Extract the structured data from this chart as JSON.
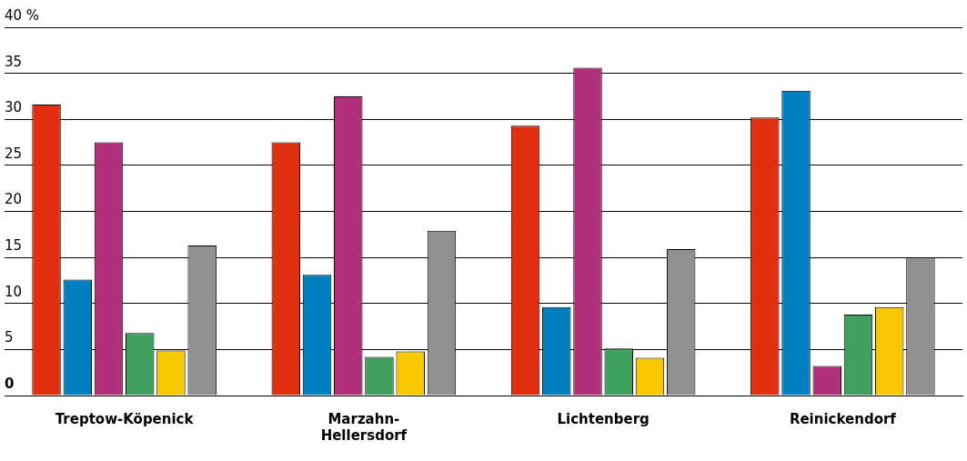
{
  "chart_data": {
    "type": "bar",
    "categories": [
      "Treptow-Köpenick",
      "Marzahn-\nHellersdorf",
      "Lichtenberg",
      "Reinickendorf"
    ],
    "ylim": [
      0,
      40
    ],
    "yticks": [
      0,
      5,
      10,
      15,
      20,
      25,
      30,
      35,
      {
        "value": 40,
        "label": "40 %"
      }
    ],
    "grid": "y",
    "series": [
      {
        "color": "#e03010",
        "values": [
          31.6,
          27.5,
          29.3,
          30.2
        ]
      },
      {
        "color": "#0080c0",
        "values": [
          12.6,
          13.1,
          9.6,
          33.1
        ]
      },
      {
        "color": "#b0307a",
        "values": [
          27.5,
          32.5,
          35.6,
          3.2
        ]
      },
      {
        "color": "#40a060",
        "values": [
          6.8,
          4.2,
          5.1,
          8.8
        ]
      },
      {
        "color": "#f8c800",
        "values": [
          4.9,
          4.8,
          4.1,
          9.6
        ]
      },
      {
        "color": "#909090",
        "values": [
          16.3,
          17.9,
          15.9,
          15.0
        ]
      }
    ]
  }
}
